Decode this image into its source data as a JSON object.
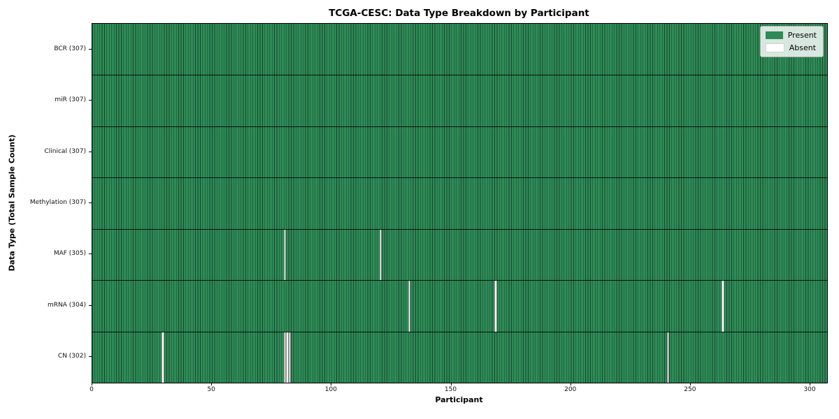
{
  "chart_data": {
    "type": "heatmap",
    "title": "TCGA-CESC: Data Type Breakdown by Participant",
    "xlabel": "Participant",
    "ylabel": "Data Type (Total Sample Count)",
    "x_range": [
      0,
      307
    ],
    "n_participants": 307,
    "x_ticks": [
      0,
      50,
      100,
      150,
      200,
      250,
      300
    ],
    "grid": false,
    "legend_position": "upper right",
    "rows": [
      {
        "label": "BCR (307)",
        "data_type": "BCR",
        "present_count": 307,
        "absent_participants": []
      },
      {
        "label": "miR (307)",
        "data_type": "miR",
        "present_count": 307,
        "absent_participants": []
      },
      {
        "label": "Clinical (307)",
        "data_type": "Clinical",
        "present_count": 307,
        "absent_participants": []
      },
      {
        "label": "Methylation (307)",
        "data_type": "Methylation",
        "present_count": 307,
        "absent_participants": []
      },
      {
        "label": "MAF (305)",
        "data_type": "MAF",
        "present_count": 305,
        "absent_participants": [
          80,
          120
        ]
      },
      {
        "label": "mRNA (304)",
        "data_type": "mRNA",
        "present_count": 304,
        "absent_participants": [
          132,
          168,
          263
        ]
      },
      {
        "label": "CN (302)",
        "data_type": "CN",
        "present_count": 302,
        "absent_participants": [
          29,
          80,
          81,
          82,
          240
        ]
      }
    ],
    "legend": [
      {
        "label": "Present",
        "color": "#2e8b57"
      },
      {
        "label": "Absent",
        "color": "#ffffff"
      }
    ],
    "colors": {
      "present": "#2e8b57",
      "absent": "#ffffff",
      "cell_edge": "rgba(0,0,0,0.5)",
      "row_divider": "#000000",
      "axis": "#000000"
    }
  }
}
